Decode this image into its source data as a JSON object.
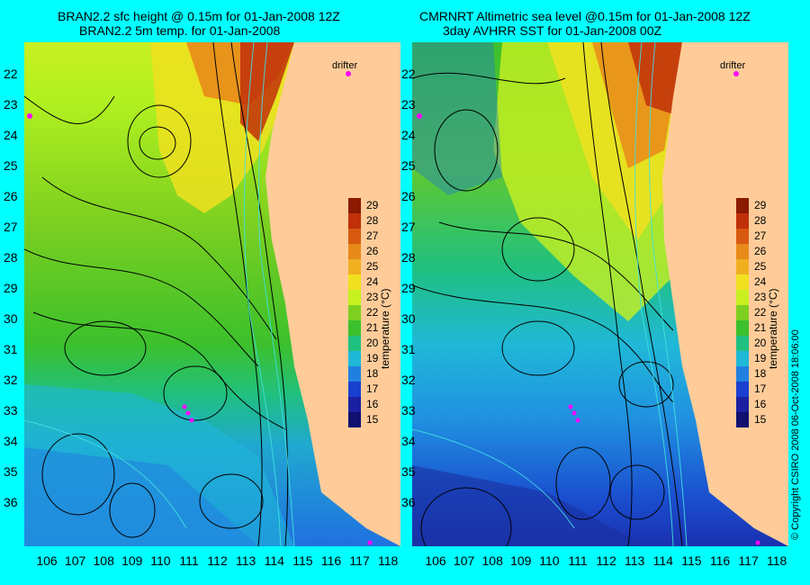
{
  "left_panel": {
    "title_line1": "BRAN2.2 sfc height @ 0.15m for 01-Jan-2008 12Z",
    "title_line2": "BRAN2.2 5m temp. for 01-Jan-2008",
    "drifter_label": "drifter"
  },
  "right_panel": {
    "title_line1": "CMRNRT Altimetric sea level  @0.15m  for 01-Jan-2008 12Z",
    "title_line2": "3day AVHRR SST for 01-Jan-2008 00Z",
    "drifter_label": "drifter"
  },
  "colorbar": {
    "label": "temperature (°C)",
    "ticks": [
      "29",
      "28",
      "27",
      "26",
      "25",
      "24",
      "23",
      "22",
      "21",
      "20",
      "19",
      "18",
      "17",
      "16",
      "15"
    ],
    "colors": [
      "#8b1a00",
      "#c0300a",
      "#d85a10",
      "#e88a1a",
      "#f0b020",
      "#f0e020",
      "#c8f020",
      "#7ed020",
      "#3cc02c",
      "#20c080",
      "#20b8d8",
      "#2080e0",
      "#1a40d0",
      "#1a20a0",
      "#101070"
    ]
  },
  "axes": {
    "lat_ticks": [
      "22",
      "23",
      "24",
      "25",
      "26",
      "27",
      "28",
      "29",
      "30",
      "31",
      "32",
      "33",
      "34",
      "35",
      "36"
    ],
    "lon_ticks": [
      "106",
      "107",
      "108",
      "109",
      "110",
      "111",
      "112",
      "113",
      "114",
      "115",
      "116",
      "117",
      "118"
    ]
  },
  "copyright": "© Copyright CSIRO 2008     06-Oct-2008 18:06:00",
  "colors": {
    "background": "#00ffff",
    "land": "#ffcc99",
    "drifter": "#ff00ff",
    "contour": "#000000",
    "bathymetry": "#40e0e0"
  }
}
